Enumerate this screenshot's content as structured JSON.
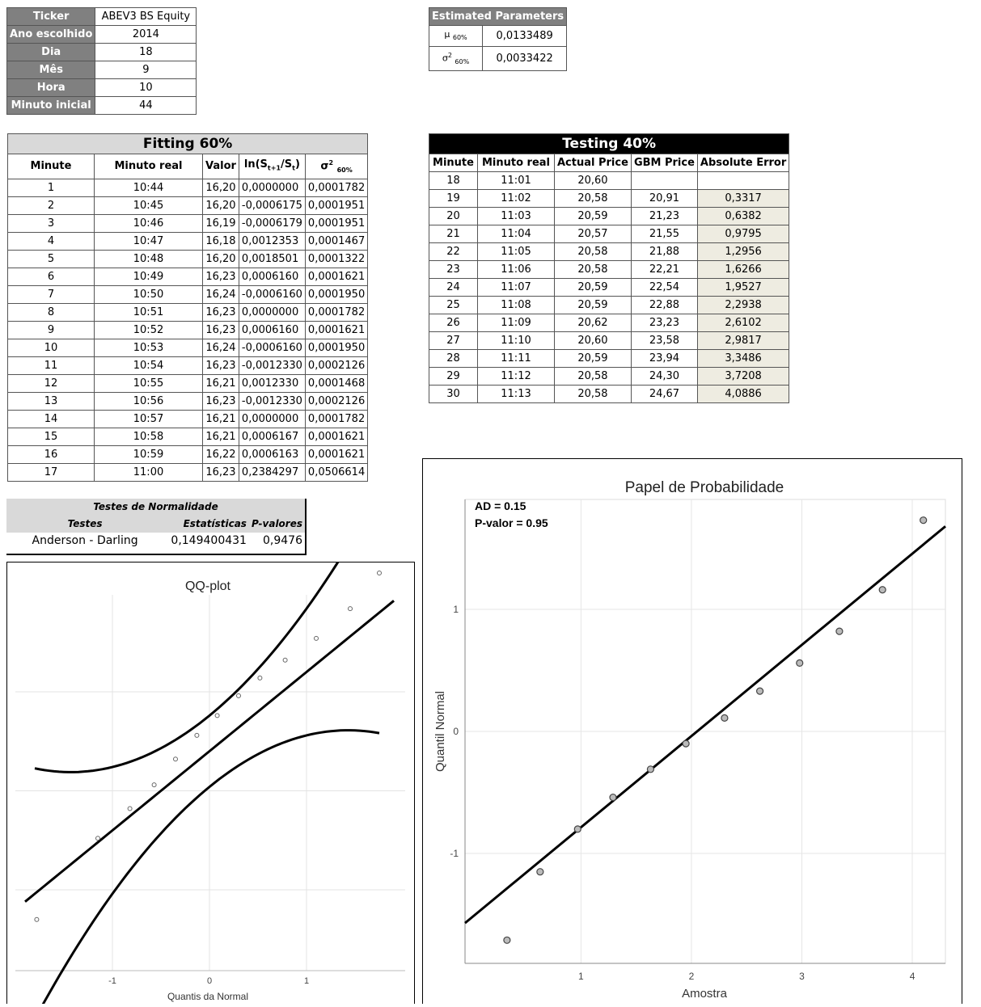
{
  "info": {
    "rows": [
      {
        "label": "Ticker",
        "value": "ABEV3 BS Equity"
      },
      {
        "label": "Ano escolhido",
        "value": "2014"
      },
      {
        "label": "Dia",
        "value": "18"
      },
      {
        "label": "Mês",
        "value": "9"
      },
      {
        "label": "Hora",
        "value": "10"
      },
      {
        "label": "Minuto inicial",
        "value": "44"
      }
    ]
  },
  "estimated": {
    "title": "Estimated Parameters",
    "mu_label": "μ 60%",
    "mu_value": "0,0133489",
    "sigma_label": "σ2 60%",
    "sigma_value": "0,0033422"
  },
  "fitting": {
    "title": "Fitting 60%",
    "headers": [
      "Minute",
      "Minuto real",
      "Valor",
      "ln(St+1/St)",
      "σ2 60%"
    ],
    "rows": [
      [
        "1",
        "10:44",
        "16,20",
        "0,0000000",
        "0,0001782"
      ],
      [
        "2",
        "10:45",
        "16,20",
        "-0,0006175",
        "0,0001951"
      ],
      [
        "3",
        "10:46",
        "16,19",
        "-0,0006179",
        "0,0001951"
      ],
      [
        "4",
        "10:47",
        "16,18",
        "0,0012353",
        "0,0001467"
      ],
      [
        "5",
        "10:48",
        "16,20",
        "0,0018501",
        "0,0001322"
      ],
      [
        "6",
        "10:49",
        "16,23",
        "0,0006160",
        "0,0001621"
      ],
      [
        "7",
        "10:50",
        "16,24",
        "-0,0006160",
        "0,0001950"
      ],
      [
        "8",
        "10:51",
        "16,23",
        "0,0000000",
        "0,0001782"
      ],
      [
        "9",
        "10:52",
        "16,23",
        "0,0006160",
        "0,0001621"
      ],
      [
        "10",
        "10:53",
        "16,24",
        "-0,0006160",
        "0,0001950"
      ],
      [
        "11",
        "10:54",
        "16,23",
        "-0,0012330",
        "0,0002126"
      ],
      [
        "12",
        "10:55",
        "16,21",
        "0,0012330",
        "0,0001468"
      ],
      [
        "13",
        "10:56",
        "16,23",
        "-0,0012330",
        "0,0002126"
      ],
      [
        "14",
        "10:57",
        "16,21",
        "0,0000000",
        "0,0001782"
      ],
      [
        "15",
        "10:58",
        "16,21",
        "0,0006167",
        "0,0001621"
      ],
      [
        "16",
        "10:59",
        "16,22",
        "0,0006163",
        "0,0001621"
      ],
      [
        "17",
        "11:00",
        "16,23",
        "0,2384297",
        "0,0506614"
      ]
    ]
  },
  "testing": {
    "title": "Testing 40%",
    "headers": [
      "Minute",
      "Minuto real",
      "Actual Price",
      "GBM Price",
      "Absolute Error"
    ],
    "rows": [
      [
        "18",
        "11:01",
        "20,60",
        "",
        ""
      ],
      [
        "19",
        "11:02",
        "20,58",
        "20,91",
        "0,3317"
      ],
      [
        "20",
        "11:03",
        "20,59",
        "21,23",
        "0,6382"
      ],
      [
        "21",
        "11:04",
        "20,57",
        "21,55",
        "0,9795"
      ],
      [
        "22",
        "11:05",
        "20,58",
        "21,88",
        "1,2956"
      ],
      [
        "23",
        "11:06",
        "20,58",
        "22,21",
        "1,6266"
      ],
      [
        "24",
        "11:07",
        "20,59",
        "22,54",
        "1,9527"
      ],
      [
        "25",
        "11:08",
        "20,59",
        "22,88",
        "2,2938"
      ],
      [
        "26",
        "11:09",
        "20,62",
        "23,23",
        "2,6102"
      ],
      [
        "27",
        "11:10",
        "20,60",
        "23,58",
        "2,9817"
      ],
      [
        "28",
        "11:11",
        "20,59",
        "23,94",
        "3,3486"
      ],
      [
        "29",
        "11:12",
        "20,58",
        "24,30",
        "3,7208"
      ],
      [
        "30",
        "11:13",
        "20,58",
        "24,67",
        "4,0886"
      ]
    ]
  },
  "normality": {
    "title": "Testes de Normalidade",
    "col_tests": "Testes",
    "col_stats": "Estatísticas",
    "col_pvals": "P-valores",
    "test_name": "Anderson - Darling",
    "statistic": "0,149400431",
    "p_value": "0,9476"
  },
  "chart_data": [
    {
      "type": "scatter",
      "title": "QQ-plot",
      "xlabel": "Quantis da Normal",
      "ylabel": "",
      "xlim": [
        -1.9,
        1.9
      ],
      "x_ticks": [
        "-1",
        "0",
        "1"
      ],
      "series": [
        {
          "values": [
            [
              -1.78,
              -0.15
            ],
            [
              -1.15,
              0.26
            ],
            [
              -0.82,
              0.41
            ],
            [
              -0.57,
              0.53
            ],
            [
              -0.35,
              0.66
            ],
            [
              -0.13,
              0.78
            ],
            [
              0.08,
              0.88
            ],
            [
              0.3,
              0.98
            ],
            [
              0.52,
              1.07
            ],
            [
              0.78,
              1.16
            ],
            [
              1.1,
              1.27
            ],
            [
              1.45,
              1.42
            ],
            [
              1.75,
              1.6
            ]
          ]
        }
      ]
    },
    {
      "type": "scatter",
      "title": "Papel de Probabilidade",
      "xlabel": "Amostra",
      "ylabel": "Quantil Normal",
      "xlim": [
        -0.05,
        4.3
      ],
      "ylim": [
        -1.9,
        1.9
      ],
      "x_ticks": [
        "1",
        "2",
        "3",
        "4"
      ],
      "y_ticks": [
        "-1",
        "0",
        "1"
      ],
      "annotations": [
        "AD = 0.15",
        "P-valor = 0.95"
      ],
      "series": [
        {
          "values": [
            [
              0.33,
              -1.71
            ],
            [
              0.63,
              -1.15
            ],
            [
              0.97,
              -0.8
            ],
            [
              1.29,
              -0.54
            ],
            [
              1.63,
              -0.31
            ],
            [
              1.95,
              -0.1
            ],
            [
              2.3,
              0.11
            ],
            [
              2.62,
              0.33
            ],
            [
              2.98,
              0.56
            ],
            [
              3.34,
              0.82
            ],
            [
              3.73,
              1.16
            ],
            [
              4.1,
              1.73
            ]
          ]
        }
      ],
      "fit_line": [
        [
          -0.05,
          -1.57
        ],
        [
          4.3,
          1.68
        ]
      ]
    }
  ]
}
